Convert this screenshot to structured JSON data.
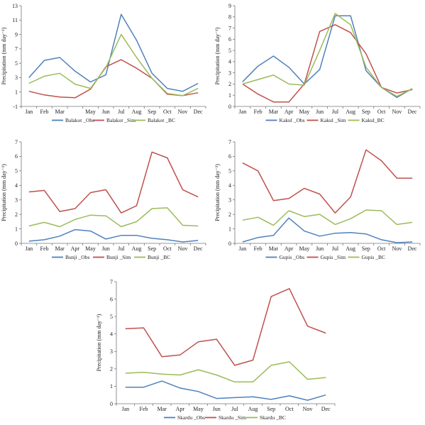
{
  "chart_data": [
    {
      "type": "line",
      "ylabel": "Precipitation (mm day⁻¹)",
      "categories": [
        "Jan",
        "Feb",
        "Mar",
        "",
        "May",
        "Jun",
        "Jul",
        "Aug",
        "Sep",
        "Oct",
        "Nov",
        "Dec"
      ],
      "ylim": [
        -1,
        13
      ],
      "yticks": [
        -1,
        1,
        3,
        5,
        7,
        9,
        11,
        13
      ],
      "grid": false,
      "legend": "bottom",
      "series": [
        {
          "name": "Balakot _Obs",
          "color": "#4f81bd",
          "values": [
            3.0,
            5.4,
            5.8,
            3.9,
            2.4,
            3.4,
            11.8,
            8.2,
            3.6,
            1.5,
            1.1,
            2.2
          ]
        },
        {
          "name": "Balakot _Sim",
          "color": "#c0504d",
          "values": [
            1.1,
            0.6,
            0.3,
            0.2,
            1.4,
            4.5,
            5.5,
            4.3,
            2.9,
            0.7,
            0.5,
            0.9
          ]
        },
        {
          "name": "Balakot _BC",
          "color": "#9bbb59",
          "values": [
            2.2,
            3.2,
            3.6,
            2.1,
            1.5,
            4.4,
            9.0,
            5.8,
            2.9,
            0.8,
            0.5,
            1.5
          ]
        }
      ]
    },
    {
      "type": "line",
      "ylabel": "Precipitation (mm day⁻¹)",
      "categories": [
        "Jan",
        "Feb",
        "Mar",
        "Apr",
        "May",
        "Jun",
        "Jul",
        "Aug",
        "Sep",
        "Oct",
        "Nov",
        "Dec"
      ],
      "ylim": [
        0,
        9
      ],
      "yticks": [
        0,
        1,
        2,
        3,
        4,
        5,
        6,
        7,
        8,
        9
      ],
      "grid": false,
      "legend": "bottom",
      "series": [
        {
          "name": "Kakul _Obs",
          "color": "#4f81bd",
          "values": [
            2.2,
            3.6,
            4.5,
            3.5,
            2.0,
            3.3,
            8.1,
            8.1,
            3.2,
            1.7,
            0.8,
            1.6
          ]
        },
        {
          "name": "Kakul _Sim",
          "color": "#c0504d",
          "values": [
            2.0,
            1.1,
            0.4,
            0.4,
            2.0,
            6.7,
            7.3,
            6.6,
            4.7,
            1.7,
            1.2,
            1.5
          ]
        },
        {
          "name": "Kakul_BC",
          "color": "#9bbb59",
          "values": [
            2.0,
            2.4,
            2.8,
            2.0,
            1.9,
            5.0,
            8.3,
            7.3,
            3.5,
            1.7,
            0.9,
            1.6
          ]
        }
      ]
    },
    {
      "type": "line",
      "ylabel": "Precipitation (mm day⁻¹)",
      "categories": [
        "Jan",
        "Feb",
        "Mar",
        "Apr",
        "May",
        "Jun",
        "Jul",
        "Aug",
        "Sep",
        "Oct",
        "Nov",
        "Dec"
      ],
      "ylim": [
        0,
        7
      ],
      "yticks": [
        0,
        1,
        2,
        3,
        4,
        5,
        6,
        7
      ],
      "grid": false,
      "legend": "bottom",
      "series": [
        {
          "name": "Bunji _Obs",
          "color": "#4f81bd",
          "values": [
            0.15,
            0.25,
            0.5,
            0.95,
            0.85,
            0.3,
            0.55,
            0.55,
            0.35,
            0.25,
            0.1,
            0.2
          ]
        },
        {
          "name": "Bunji _Sim",
          "color": "#c0504d",
          "values": [
            3.55,
            3.65,
            2.2,
            2.4,
            3.5,
            3.7,
            2.1,
            2.6,
            6.3,
            5.9,
            3.7,
            3.2
          ]
        },
        {
          "name": "Bunji _BC",
          "color": "#9bbb59",
          "values": [
            1.2,
            1.45,
            1.15,
            1.65,
            1.95,
            1.9,
            1.15,
            1.5,
            2.4,
            2.45,
            1.25,
            1.2
          ]
        }
      ]
    },
    {
      "type": "line",
      "ylabel": "Precipitation (mm day⁻¹)",
      "categories": [
        "Jan",
        "Feb",
        "Mar",
        "Apr",
        "May",
        "Jun",
        "Jul",
        "Aug",
        "Sep",
        "Oct",
        "Nov",
        "Dec"
      ],
      "ylim": [
        0,
        7
      ],
      "yticks": [
        0,
        1,
        2,
        3,
        4,
        5,
        6,
        7
      ],
      "grid": false,
      "legend": "bottom",
      "series": [
        {
          "name": "Gupis _Obs",
          "color": "#4f81bd",
          "values": [
            0.1,
            0.4,
            0.55,
            1.75,
            0.85,
            0.5,
            0.7,
            0.75,
            0.65,
            0.25,
            0.05,
            0.1
          ]
        },
        {
          "name": "Gupis _Sim",
          "color": "#c0504d",
          "values": [
            5.55,
            5.0,
            2.95,
            3.1,
            3.8,
            3.4,
            2.1,
            3.2,
            6.45,
            5.7,
            4.5,
            4.5
          ]
        },
        {
          "name": "Gupis _BC",
          "color": "#9bbb59",
          "values": [
            1.6,
            1.8,
            1.25,
            2.25,
            1.85,
            2.0,
            1.3,
            1.7,
            2.3,
            2.25,
            1.3,
            1.45
          ]
        }
      ]
    },
    {
      "type": "line",
      "ylabel": "Precipitation (mm day⁻¹)",
      "categories": [
        "Jan",
        "Feb",
        "Mar",
        "Apr",
        "May",
        "Jun",
        "Jul",
        "Aug",
        "Sep",
        "Oct",
        "Nov",
        "Dec"
      ],
      "ylim": [
        0,
        7
      ],
      "yticks": [
        0,
        1,
        2,
        3,
        4,
        5,
        6,
        7
      ],
      "grid": false,
      "legend": "bottom",
      "series": [
        {
          "name": "Skardu _Obs",
          "color": "#4f81bd",
          "values": [
            0.95,
            0.95,
            1.3,
            0.9,
            0.7,
            0.3,
            0.35,
            0.4,
            0.25,
            0.45,
            0.2,
            0.5
          ]
        },
        {
          "name": "Skardu _Sim",
          "color": "#c0504d",
          "values": [
            4.3,
            4.35,
            2.7,
            2.8,
            3.55,
            3.7,
            2.2,
            2.5,
            6.15,
            6.6,
            4.45,
            4.05
          ]
        },
        {
          "name": "Skardu _BC",
          "color": "#9bbb59",
          "values": [
            1.75,
            1.8,
            1.7,
            1.65,
            1.95,
            1.65,
            1.25,
            1.25,
            2.2,
            2.4,
            1.4,
            1.5
          ]
        }
      ]
    }
  ]
}
